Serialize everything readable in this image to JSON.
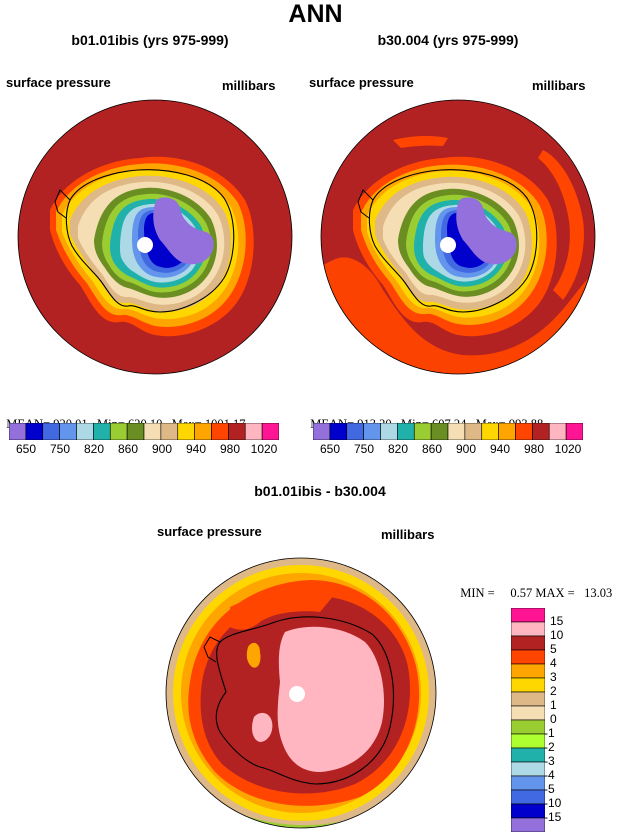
{
  "main_title": "ANN",
  "colors": {
    "c650": "#9370DB",
    "c700": "#0000CD",
    "c750": "#4169E1",
    "c800": "#6495ED",
    "c820": "#ADD8E6",
    "c840": "#20B2AA",
    "c860": "#9ACD32",
    "c880": "#6B8E23",
    "c900": "#F5DEB3",
    "c920": "#DEB887",
    "c940": "#FFD700",
    "c960": "#FFA500",
    "c980": "#FF4500",
    "c1000": "#B22222",
    "c1020a": "#FFB6C1",
    "c1020b": "#FF1493",
    "disk_bg": "#B22222",
    "ocean_band": "#FF4500"
  },
  "chart_data": [
    {
      "type": "heatmap",
      "title": "b01.01ibis (yrs 975-999)",
      "left_label": "surface pressure",
      "right_label": "millibars",
      "stats": {
        "mean": "920.01",
        "min": "620.10",
        "max": "1001.17"
      },
      "stats_labels": {
        "mean": "MEAN=",
        "min": "Min=",
        "max": "Max="
      },
      "colorbar_ticks": [
        "650",
        "750",
        "820",
        "860",
        "900",
        "940",
        "980",
        "1020"
      ]
    },
    {
      "type": "heatmap",
      "title": "b30.004 (yrs 975-999)",
      "left_label": "surface pressure",
      "right_label": "millibars",
      "stats": {
        "mean": "913.20",
        "min": "607.24",
        "max": "993.88"
      },
      "stats_labels": {
        "mean": "MEAN=",
        "min": "Min=",
        "max": "Max="
      },
      "colorbar_ticks": [
        "650",
        "750",
        "820",
        "860",
        "900",
        "940",
        "980",
        "1020"
      ]
    },
    {
      "type": "heatmap",
      "title": "b01.01ibis - b30.004",
      "left_label": "surface pressure",
      "right_label": "millibars",
      "stats": {
        "min": "0.57",
        "max": "13.03"
      },
      "stats_labels": {
        "min": "MIN =",
        "max": "MAX ="
      },
      "colorbar_ticks": [
        "15",
        "10",
        "5",
        "4",
        "3",
        "2",
        "1",
        "0",
        "-1",
        "-2",
        "-3",
        "-4",
        "-5",
        "-10",
        "-15"
      ],
      "colorbar_colors": [
        "#FF1493",
        "#FFB6C1",
        "#B22222",
        "#FF4500",
        "#FFA500",
        "#FFD700",
        "#DEB887",
        "#F5DEB3",
        "#9ACD32",
        "#ADFF2F",
        "#20B2AA",
        "#ADD8E6",
        "#6495ED",
        "#4169E1",
        "#0000CD",
        "#9370DB"
      ]
    }
  ]
}
